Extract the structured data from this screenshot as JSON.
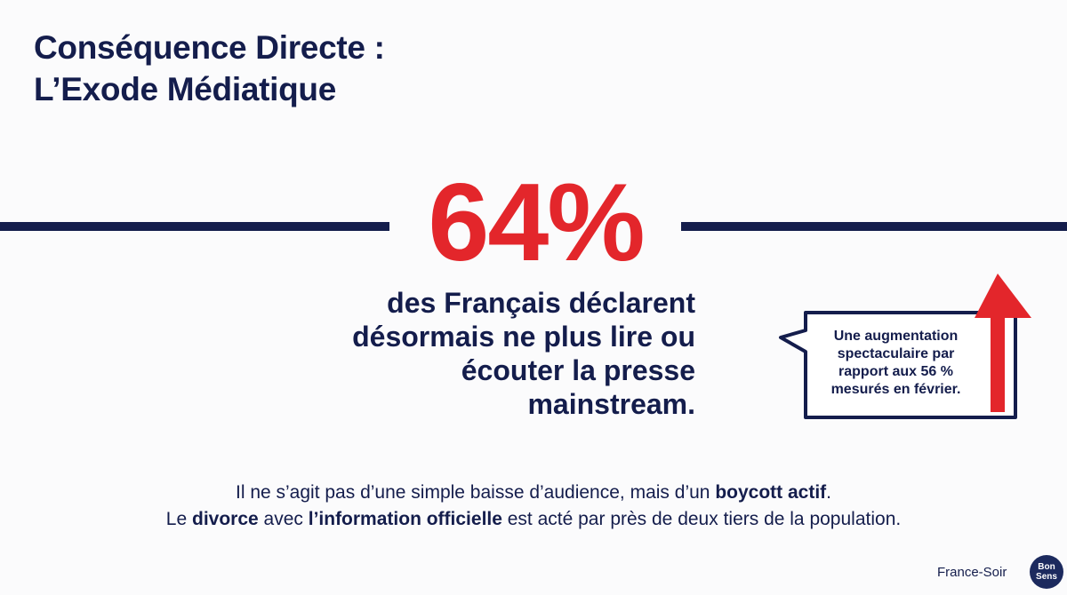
{
  "slide": {
    "title_line1": "Conséquence Directe :",
    "title_line2": "L’Exode Médiatique"
  },
  "stat": {
    "value": "64%",
    "description_lines": [
      "des Français déclarent",
      "désormais ne plus lire ou",
      "écouter la presse",
      "mainstream."
    ]
  },
  "callout": {
    "lines": [
      "Une augmentation",
      "spectaculaire par",
      "rapport aux 56 %",
      "mesurés en février."
    ],
    "icon": "arrow-up-icon"
  },
  "footer": {
    "line1_a": "Il ne s’agit pas d’une simple baisse d’audience, mais d’un ",
    "line1_b": "boycott actif",
    "line1_c": ".",
    "line2_a": "Le ",
    "line2_b": "divorce",
    "line2_c": " avec ",
    "line2_d": "l’information officielle",
    "line2_e": " est acté par près de deux tiers de la population."
  },
  "brand": {
    "name": "France-Soir",
    "logo_top": "Bon",
    "logo_bottom": "Sens"
  },
  "colors": {
    "navy": "#141d4c",
    "red": "#e3262b",
    "background": "#fbfbfc"
  }
}
